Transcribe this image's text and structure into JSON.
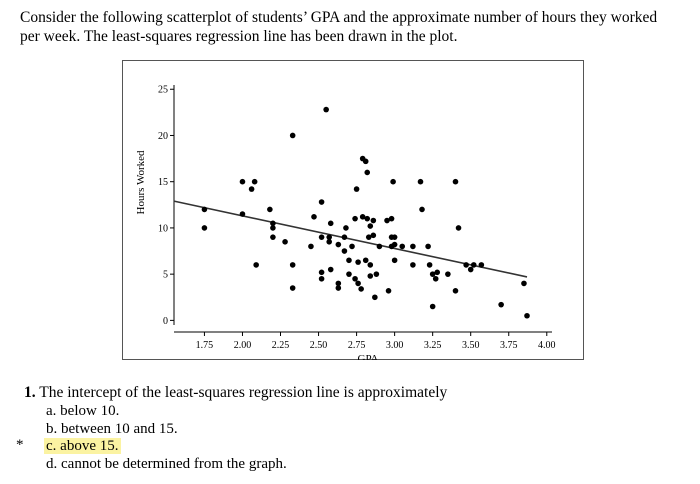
{
  "intro": {
    "line1": "Consider the following scatterplot of students’ GPA and the approximate number of hours they worked",
    "line2": "per week.   The least-squares regression line has been drawn in the plot."
  },
  "question": {
    "number": "1.",
    "text": "The intercept of the least-squares regression line is approximately",
    "options": [
      {
        "label": "a. below 10."
      },
      {
        "label": "b. between 10 and 15."
      },
      {
        "label": "c. above 15.",
        "highlighted": true
      },
      {
        "label": "d. cannot be determined from the graph."
      }
    ],
    "marker": "*",
    "highlight_color": "#fbf3a2"
  },
  "chart_data": {
    "type": "scatter",
    "xlabel": "GPA",
    "ylabel": "Hours Worked",
    "xlim": [
      1.55,
      4.1
    ],
    "ylim": [
      -0.5,
      26
    ],
    "x_ticks": [
      "1.75",
      "2.00",
      "2.25",
      "2.50",
      "2.75",
      "3.00",
      "3.25",
      "3.50",
      "3.75",
      "4.00"
    ],
    "y_ticks": [
      "0",
      "5",
      "10",
      "15",
      "20",
      "25"
    ],
    "grid": false,
    "regression_line": {
      "x": [
        1.55,
        3.87
      ],
      "y": [
        12.9,
        4.7
      ]
    },
    "points": [
      {
        "x": 1.75,
        "y": 12
      },
      {
        "x": 1.75,
        "y": 10
      },
      {
        "x": 2.0,
        "y": 15
      },
      {
        "x": 2.0,
        "y": 11.5
      },
      {
        "x": 2.08,
        "y": 15
      },
      {
        "x": 2.06,
        "y": 14.2
      },
      {
        "x": 2.09,
        "y": 6
      },
      {
        "x": 2.2,
        "y": 10.5
      },
      {
        "x": 2.2,
        "y": 10
      },
      {
        "x": 2.2,
        "y": 9
      },
      {
        "x": 2.18,
        "y": 12
      },
      {
        "x": 2.28,
        "y": 8.5
      },
      {
        "x": 2.33,
        "y": 20
      },
      {
        "x": 2.33,
        "y": 6
      },
      {
        "x": 2.33,
        "y": 3.5
      },
      {
        "x": 2.45,
        "y": 8
      },
      {
        "x": 2.47,
        "y": 11.2
      },
      {
        "x": 2.52,
        "y": 12.8
      },
      {
        "x": 2.52,
        "y": 9
      },
      {
        "x": 2.52,
        "y": 5.2
      },
      {
        "x": 2.52,
        "y": 4.5
      },
      {
        "x": 2.55,
        "y": 22.8
      },
      {
        "x": 2.57,
        "y": 8.5
      },
      {
        "x": 2.57,
        "y": 9
      },
      {
        "x": 2.58,
        "y": 10.5
      },
      {
        "x": 2.58,
        "y": 5.5
      },
      {
        "x": 2.63,
        "y": 8.2
      },
      {
        "x": 2.63,
        "y": 3.5
      },
      {
        "x": 2.63,
        "y": 4
      },
      {
        "x": 2.67,
        "y": 9
      },
      {
        "x": 2.67,
        "y": 7.5
      },
      {
        "x": 2.68,
        "y": 10
      },
      {
        "x": 2.7,
        "y": 6.5
      },
      {
        "x": 2.7,
        "y": 5
      },
      {
        "x": 2.72,
        "y": 8
      },
      {
        "x": 2.74,
        "y": 11
      },
      {
        "x": 2.74,
        "y": 4.5
      },
      {
        "x": 2.75,
        "y": 14.2
      },
      {
        "x": 2.76,
        "y": 6.3
      },
      {
        "x": 2.76,
        "y": 4
      },
      {
        "x": 2.78,
        "y": 3.4
      },
      {
        "x": 2.79,
        "y": 11.2
      },
      {
        "x": 2.79,
        "y": 17.5
      },
      {
        "x": 2.81,
        "y": 17.2
      },
      {
        "x": 2.81,
        "y": 6.5
      },
      {
        "x": 2.82,
        "y": 16
      },
      {
        "x": 2.82,
        "y": 11
      },
      {
        "x": 2.83,
        "y": 9
      },
      {
        "x": 2.84,
        "y": 10.2
      },
      {
        "x": 2.84,
        "y": 6
      },
      {
        "x": 2.84,
        "y": 4.8
      },
      {
        "x": 2.86,
        "y": 10.8
      },
      {
        "x": 2.86,
        "y": 9.2
      },
      {
        "x": 2.87,
        "y": 2.5
      },
      {
        "x": 2.88,
        "y": 5
      },
      {
        "x": 2.9,
        "y": 8
      },
      {
        "x": 2.95,
        "y": 10.8
      },
      {
        "x": 2.96,
        "y": 3.2
      },
      {
        "x": 2.98,
        "y": 11
      },
      {
        "x": 2.98,
        "y": 9
      },
      {
        "x": 2.98,
        "y": 8
      },
      {
        "x": 2.99,
        "y": 15
      },
      {
        "x": 3.0,
        "y": 9
      },
      {
        "x": 3.0,
        "y": 8.2
      },
      {
        "x": 3.0,
        "y": 6.5
      },
      {
        "x": 3.05,
        "y": 8
      },
      {
        "x": 3.12,
        "y": 8
      },
      {
        "x": 3.12,
        "y": 6
      },
      {
        "x": 3.17,
        "y": 15
      },
      {
        "x": 3.18,
        "y": 12
      },
      {
        "x": 3.22,
        "y": 8
      },
      {
        "x": 3.23,
        "y": 6
      },
      {
        "x": 3.25,
        "y": 5
      },
      {
        "x": 3.25,
        "y": 1.5
      },
      {
        "x": 3.27,
        "y": 4.5
      },
      {
        "x": 3.28,
        "y": 5.2
      },
      {
        "x": 3.35,
        "y": 5
      },
      {
        "x": 3.4,
        "y": 15
      },
      {
        "x": 3.42,
        "y": 10
      },
      {
        "x": 3.4,
        "y": 3.2
      },
      {
        "x": 3.47,
        "y": 6
      },
      {
        "x": 3.5,
        "y": 5.5
      },
      {
        "x": 3.52,
        "y": 6
      },
      {
        "x": 3.57,
        "y": 6
      },
      {
        "x": 3.7,
        "y": 1.7
      },
      {
        "x": 3.85,
        "y": 4
      },
      {
        "x": 3.87,
        "y": 0.5
      }
    ]
  }
}
